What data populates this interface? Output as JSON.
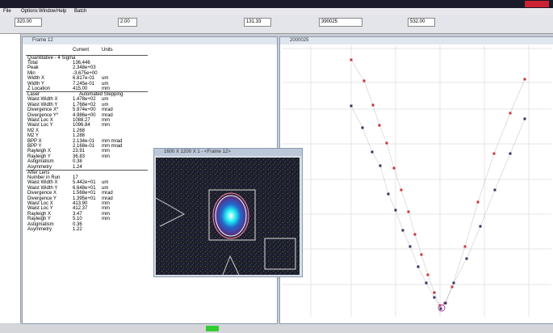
{
  "app": {
    "menu": [
      "File",
      "Options",
      "Window",
      "Help",
      "Batch"
    ],
    "toolbar": {
      "field_1": "320.00",
      "field_2": "2.00",
      "field_3": "131.33",
      "field_4": "390025",
      "field_5": "532.00"
    }
  },
  "results_window": {
    "title": "Frame 12",
    "columns": [
      "Current",
      "Units"
    ],
    "sections": [
      {
        "title": "Quantitative - 4 Sigma",
        "rows": [
          [
            "Total",
            "136,446"
          ],
          [
            "Peak",
            "2.348e+03"
          ],
          [
            "Min",
            "-3.675e+00"
          ],
          [
            "Width X",
            "6.817e-01",
            "um"
          ],
          [
            "Width Y",
            "7.245e-01",
            "um"
          ],
          [
            "Z Location",
            "415.00",
            "mm"
          ]
        ]
      },
      {
        "title": "Laser",
        "subtitle": "Automated Stepping",
        "rows": [
          [
            "Waist Width X",
            "1.478e+02",
            "um"
          ],
          [
            "Waist Width Y",
            "1.768e+02",
            "um"
          ],
          [
            "Divergence X*",
            "5.974e+00",
            "mrad"
          ],
          [
            "Divergence Y*",
            "4.986e+00",
            "mrad"
          ],
          [
            "Waist Loc X",
            "1088.27",
            "mm"
          ],
          [
            "Waist Loc Y",
            "1096.84",
            "mm"
          ],
          [
            "M2 X",
            "1.268"
          ],
          [
            "M2 Y",
            "1.288"
          ],
          [
            "BPP X",
            "2.134e-01",
            "mm mrad"
          ],
          [
            "BPP Y",
            "2.168e-01",
            "mm mrad"
          ],
          [
            "Rayleigh X",
            "23.91",
            "mm"
          ],
          [
            "Rayleigh Y",
            "36.83",
            "mm"
          ],
          [
            "Astigmatism",
            "0.38"
          ],
          [
            "Asymmetry",
            "1.24"
          ]
        ]
      },
      {
        "title": "After Lens",
        "rows": [
          [
            "Number in Run",
            "17"
          ],
          [
            "Waist Width X",
            "5.442e+01",
            "um"
          ],
          [
            "Waist Width Y",
            "6.648e+01",
            "um"
          ],
          [
            "Divergence X",
            "1.568e+01",
            "mrad"
          ],
          [
            "Divergence Y",
            "1.395e+01",
            "mrad"
          ],
          [
            "Waist Loc X",
            "413.90",
            "mm"
          ],
          [
            "Waist Loc Y",
            "412.37",
            "mm"
          ],
          [
            "Rayleigh X",
            "3.47",
            "mm"
          ],
          [
            "Rayleigh Y",
            "5.10",
            "mm"
          ],
          [
            "Astigmatism",
            "0.36"
          ],
          [
            "Asymmetry",
            "1.22"
          ]
        ]
      }
    ]
  },
  "image_window": {
    "title": "1600 X 1200 X 1 - <Frame 12>"
  },
  "chart_window": {
    "title": "2000025"
  }
}
